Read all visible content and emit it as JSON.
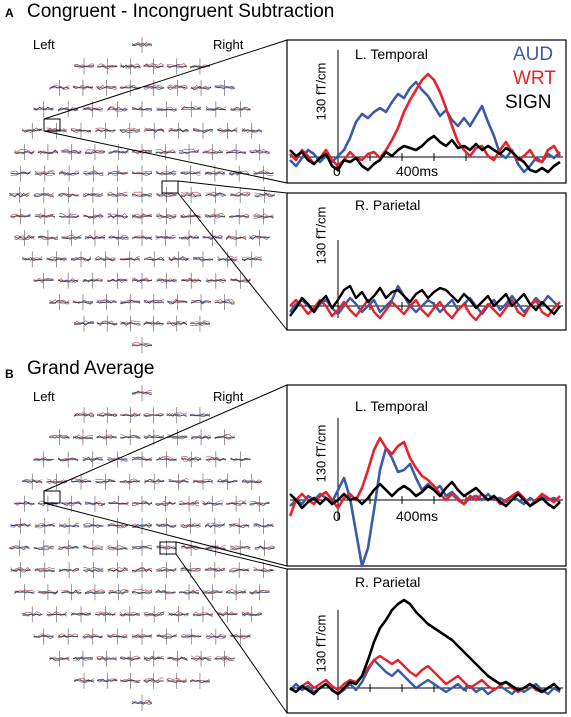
{
  "panels": [
    {
      "letter": "A",
      "title": "Congruent - Incongruent Subtraction",
      "left_label": "Left",
      "right_label": "Right",
      "insets": [
        {
          "region": "L. Temporal",
          "ylabel": "130 fT/cm",
          "x0_label": "0",
          "x400_label": "400ms",
          "legend": [
            "AUD",
            "WRT",
            "SIGN"
          ]
        },
        {
          "region": "R. Parietal",
          "ylabel": "130 fT/cm"
        }
      ]
    },
    {
      "letter": "B",
      "title": "Grand Average",
      "left_label": "Left",
      "right_label": "Right",
      "insets": [
        {
          "region": "L. Temporal",
          "ylabel": "130 fT/cm",
          "x0_label": "0",
          "x400_label": "400ms"
        },
        {
          "region": "R. Parietal",
          "ylabel": "130 fT/cm"
        }
      ]
    }
  ],
  "colors": {
    "AUD": "#3a5ba8",
    "WRT": "#e8222a",
    "SIGN": "#000000"
  }
}
